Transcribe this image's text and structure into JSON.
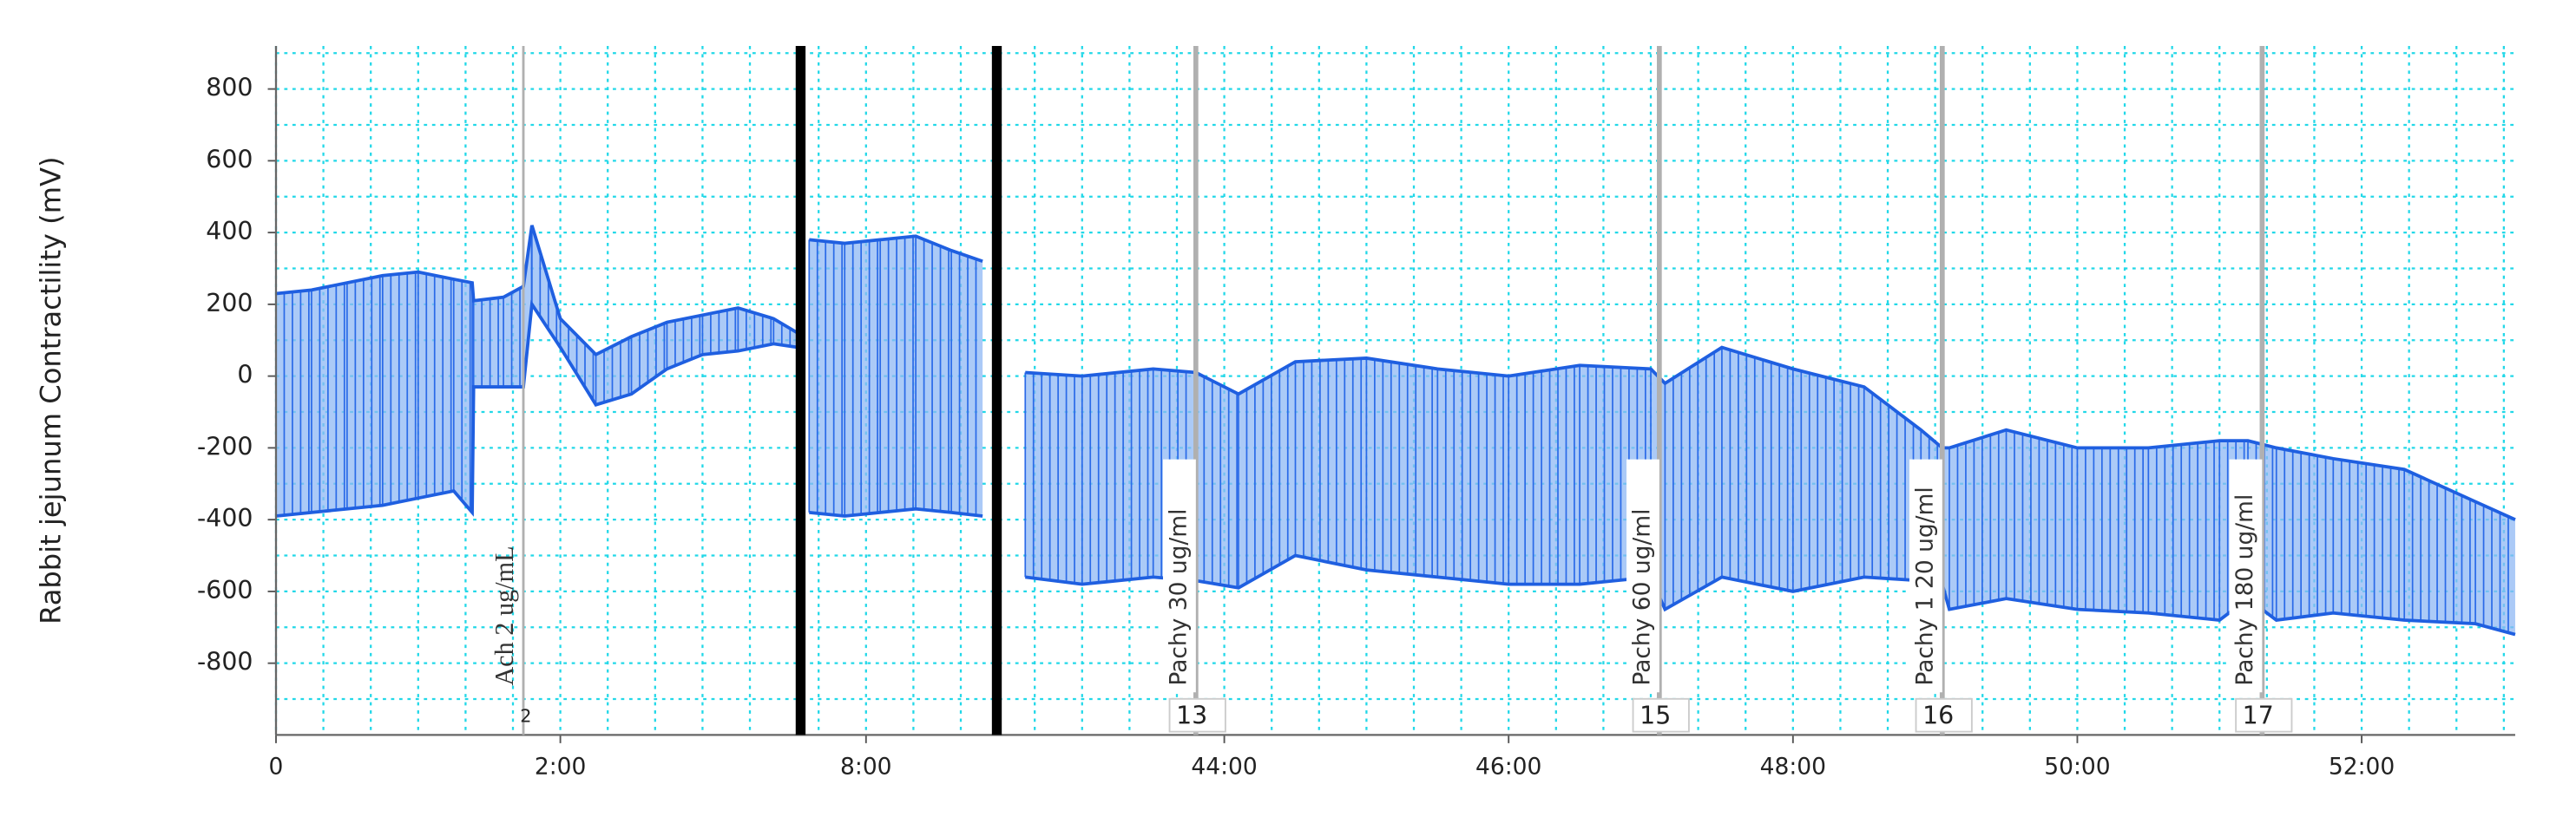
{
  "chart_data": {
    "type": "line",
    "y_label": "Rabbit jejunum Contractility (mV)",
    "xlim": [
      0,
      53.08
    ],
    "axis_breaks": [
      [
        3.69,
        7.54
      ],
      [
        8.92,
        42.4
      ]
    ],
    "xticks": [
      0,
      {
        "value": 2,
        "label": "2:00"
      },
      {
        "value": 8,
        "label": "8:00"
      },
      {
        "value": 44,
        "label": "44:00"
      },
      {
        "value": 46,
        "label": "46:00"
      },
      {
        "value": 48,
        "label": "48:00"
      },
      {
        "value": 50,
        "label": "50:00"
      },
      {
        "value": 52,
        "label": "52:00"
      }
    ],
    "ylim": [
      -1000,
      920
    ],
    "yticks": [
      -800,
      -600,
      -400,
      -200,
      0,
      200,
      400,
      600,
      800
    ],
    "grid": true,
    "x": [
      0,
      0.25,
      0.5,
      0.75,
      1.0,
      1.25,
      1.38,
      1.39,
      1.6,
      1.74,
      1.8,
      2.0,
      2.25,
      2.5,
      2.75,
      3.0,
      3.25,
      3.5,
      3.67,
      null,
      7.6,
      7.85,
      8.1,
      8.35,
      8.6,
      8.82,
      null,
      42.6,
      43.0,
      43.5,
      43.8,
      44.1,
      44.5,
      45.0,
      45.5,
      46.0,
      46.5,
      47.0,
      47.1,
      47.5,
      48.0,
      48.5,
      48.9,
      49.05,
      49.1,
      49.5,
      50.0,
      50.5,
      51.0,
      51.2,
      51.4,
      51.8,
      52.3,
      52.8,
      53.08
    ],
    "series": [
      {
        "color": "#1f5fe0",
        "values": [
          230,
          240,
          260,
          280,
          290,
          270,
          260,
          210,
          220,
          250,
          420,
          160,
          60,
          110,
          150,
          170,
          190,
          160,
          120,
          null,
          380,
          370,
          380,
          390,
          350,
          320,
          null,
          10,
          0,
          20,
          10,
          -50,
          40,
          50,
          20,
          0,
          30,
          20,
          -20,
          80,
          20,
          -30,
          -150,
          -200,
          -200,
          -150,
          -200,
          -200,
          -180,
          -180,
          -200,
          -230,
          -260,
          -350,
          -400
        ]
      },
      {
        "color": "#1f5fe0",
        "values": [
          -390,
          -380,
          -370,
          -360,
          -340,
          -320,
          -380,
          -30,
          -30,
          -30,
          200,
          80,
          -80,
          -50,
          20,
          60,
          70,
          90,
          80,
          null,
          -380,
          -390,
          -380,
          -370,
          -380,
          -390,
          null,
          -560,
          -580,
          -560,
          -570,
          -590,
          -500,
          -540,
          -560,
          -580,
          -580,
          -560,
          -650,
          -560,
          -600,
          -560,
          -570,
          -580,
          -650,
          -620,
          -650,
          -660,
          -680,
          -620,
          -680,
          -660,
          -680,
          -690,
          -720
        ]
      }
    ],
    "annotations": [
      {
        "x": 1.74,
        "text": "Ach 2 ug/mL",
        "marker": "2"
      },
      {
        "x": 43.8,
        "text": "Pachy  30 ug/ml",
        "marker": "13"
      },
      {
        "x": 47.06,
        "text": "Pachy  60 ug/ml",
        "marker": "15"
      },
      {
        "x": 49.05,
        "text": "Pachy  1 20 ug/ml",
        "marker": "16"
      },
      {
        "x": 51.3,
        "text": "Pachy  180 ug/ml",
        "marker": "17"
      }
    ]
  }
}
